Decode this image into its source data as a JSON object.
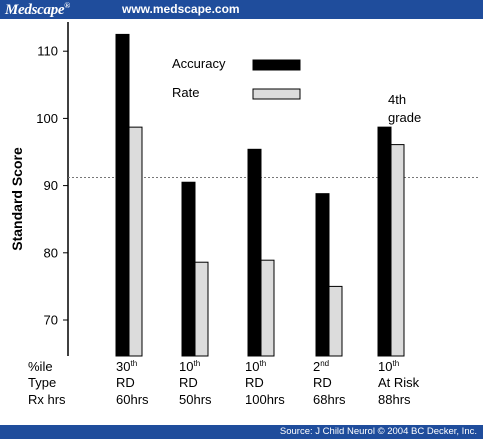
{
  "header": {
    "brand": "Medscape",
    "brand_mark": "®",
    "url": "www.medscape.com"
  },
  "footer": {
    "source": "Source: J Child Neurol © 2004 BC Decker, Inc."
  },
  "colors": {
    "header_bg": "#1f4d9c",
    "accuracy": "#000000",
    "rate": "#dcdcdc"
  },
  "chart_data": {
    "type": "bar",
    "ylabel": "Standard Score",
    "ylim": [
      65,
      115
    ],
    "yticks": [
      70,
      80,
      90,
      100,
      110
    ],
    "reference_line": 91.2,
    "grid": false,
    "legend_position": "top-center",
    "series": [
      {
        "name": "Accuracy",
        "values": [
          112.5,
          90.5,
          95.4,
          88.8,
          98.7
        ]
      },
      {
        "name": "Rate",
        "values": [
          98.7,
          78.6,
          78.9,
          75.0,
          96.1
        ]
      }
    ],
    "annotation": {
      "line1": "4th",
      "line2": "grade"
    },
    "row_labels": [
      "%ile",
      "Type",
      "Rx hrs"
    ],
    "groups": [
      {
        "pct_num": "30",
        "pct_sup": "th",
        "type": "RD",
        "hrs": "60hrs"
      },
      {
        "pct_num": "10",
        "pct_sup": "th",
        "type": "RD",
        "hrs": "50hrs"
      },
      {
        "pct_num": "10",
        "pct_sup": "th",
        "type": "RD",
        "hrs": "100hrs"
      },
      {
        "pct_num": "2",
        "pct_sup": "nd",
        "type": "RD",
        "hrs": "68hrs"
      },
      {
        "pct_num": "10",
        "pct_sup": "th",
        "type": "At Risk",
        "hrs": "88hrs"
      }
    ]
  }
}
